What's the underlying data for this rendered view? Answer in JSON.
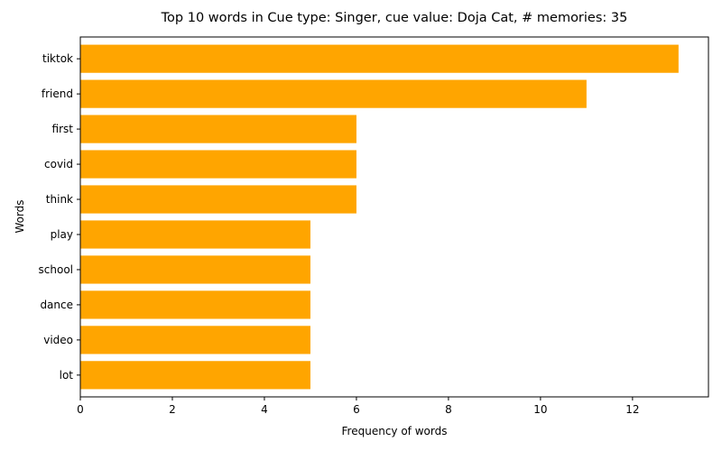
{
  "chart_data": {
    "type": "bar",
    "orientation": "horizontal",
    "title": "Top 10 words in Cue type: Singer, cue value: Doja Cat, # memories: 35",
    "xlabel": "Frequency of words",
    "ylabel": "Words",
    "categories": [
      "tiktok",
      "friend",
      "first",
      "covid",
      "think",
      "play",
      "school",
      "dance",
      "video",
      "lot"
    ],
    "values": [
      13,
      11,
      6,
      6,
      6,
      5,
      5,
      5,
      5,
      5
    ],
    "xlim": [
      0,
      13.65
    ],
    "xticks": [
      0,
      2,
      4,
      6,
      8,
      10,
      12
    ],
    "grid": false,
    "bar_color": "#FFA500"
  }
}
